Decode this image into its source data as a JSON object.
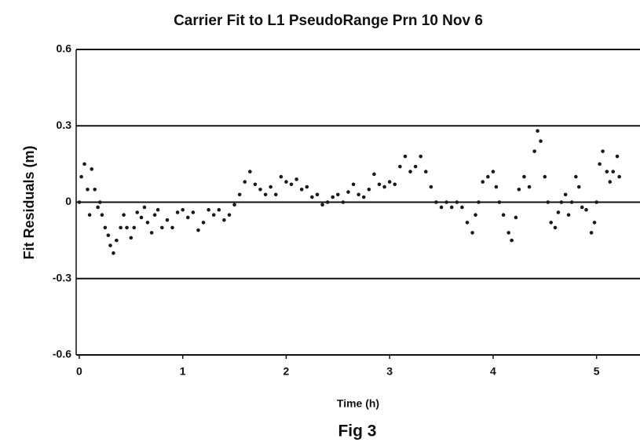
{
  "chart_data": {
    "type": "scatter",
    "title": "Carrier Fit to L1 PseudoRange Prn 10 Nov 6",
    "x_label": "Time (h)",
    "y_label": "Fit Residuals (m)",
    "caption": "Fig 3",
    "color": "#1a1a1a",
    "grid": true,
    "xlim": [
      -0.03,
      5.42
    ],
    "xticks": [
      0,
      1,
      2,
      3,
      4,
      5
    ],
    "ylim": [
      -0.6,
      0.6
    ],
    "yticks": [
      0.6,
      0.3,
      0,
      -0.3,
      -0.6
    ],
    "x": [
      0,
      0.02,
      0.05,
      0.08,
      0.1,
      0.12,
      0.15,
      0.18,
      0.2,
      0.22,
      0.25,
      0.28,
      0.3,
      0.33,
      0.36,
      0.4,
      0.43,
      0.46,
      0.5,
      0.53,
      0.56,
      0.6,
      0.63,
      0.66,
      0.7,
      0.73,
      0.76,
      0.8,
      0.85,
      0.9,
      0.95,
      1.0,
      1.05,
      1.1,
      1.15,
      1.2,
      1.25,
      1.3,
      1.35,
      1.4,
      1.45,
      1.5,
      1.55,
      1.6,
      1.65,
      1.7,
      1.75,
      1.8,
      1.85,
      1.9,
      1.95,
      2.0,
      2.05,
      2.1,
      2.15,
      2.2,
      2.25,
      2.3,
      2.35,
      2.4,
      2.45,
      2.5,
      2.55,
      2.6,
      2.65,
      2.7,
      2.75,
      2.8,
      2.85,
      2.9,
      2.95,
      3.0,
      3.05,
      3.1,
      3.15,
      3.2,
      3.25,
      3.3,
      3.35,
      3.4,
      3.45,
      3.5,
      3.55,
      3.6,
      3.65,
      3.7,
      3.75,
      3.8,
      3.83,
      3.86,
      3.9,
      3.95,
      4.0,
      4.03,
      4.06,
      4.1,
      4.15,
      4.18,
      4.22,
      4.25,
      4.3,
      4.35,
      4.4,
      4.43,
      4.46,
      4.5,
      4.53,
      4.56,
      4.6,
      4.63,
      4.66,
      4.7,
      4.73,
      4.76,
      4.8,
      4.83,
      4.86,
      4.9,
      4.95,
      4.98,
      5.0,
      5.03,
      5.06,
      5.1,
      5.13,
      5.16,
      5.2,
      5.22
    ],
    "y": [
      0.0,
      0.1,
      0.15,
      0.05,
      -0.05,
      0.13,
      0.05,
      -0.02,
      0.0,
      -0.05,
      -0.1,
      -0.13,
      -0.17,
      -0.2,
      -0.15,
      -0.1,
      -0.05,
      -0.1,
      -0.14,
      -0.1,
      -0.04,
      -0.06,
      -0.02,
      -0.08,
      -0.12,
      -0.05,
      -0.03,
      -0.1,
      -0.07,
      -0.1,
      -0.04,
      -0.03,
      -0.06,
      -0.04,
      -0.11,
      -0.08,
      -0.03,
      -0.05,
      -0.03,
      -0.07,
      -0.05,
      -0.01,
      0.03,
      0.08,
      0.12,
      0.07,
      0.05,
      0.03,
      0.06,
      0.03,
      0.1,
      0.08,
      0.07,
      0.09,
      0.05,
      0.06,
      0.02,
      0.03,
      -0.01,
      0.0,
      0.02,
      0.03,
      0.0,
      0.04,
      0.07,
      0.03,
      0.02,
      0.05,
      0.11,
      0.07,
      0.06,
      0.08,
      0.07,
      0.14,
      0.18,
      0.12,
      0.14,
      0.18,
      0.12,
      0.06,
      0.0,
      -0.02,
      0.0,
      -0.02,
      0.0,
      -0.02,
      -0.08,
      -0.12,
      -0.05,
      0.0,
      0.08,
      0.1,
      0.12,
      0.06,
      0.0,
      -0.05,
      -0.12,
      -0.15,
      -0.06,
      0.05,
      0.1,
      0.06,
      0.2,
      0.28,
      0.24,
      0.1,
      0.0,
      -0.08,
      -0.1,
      -0.04,
      0.0,
      0.03,
      -0.05,
      0.0,
      0.1,
      0.06,
      -0.02,
      -0.03,
      -0.12,
      -0.08,
      0.0,
      0.15,
      0.2,
      0.12,
      0.08,
      0.12,
      0.18,
      0.1
    ]
  }
}
